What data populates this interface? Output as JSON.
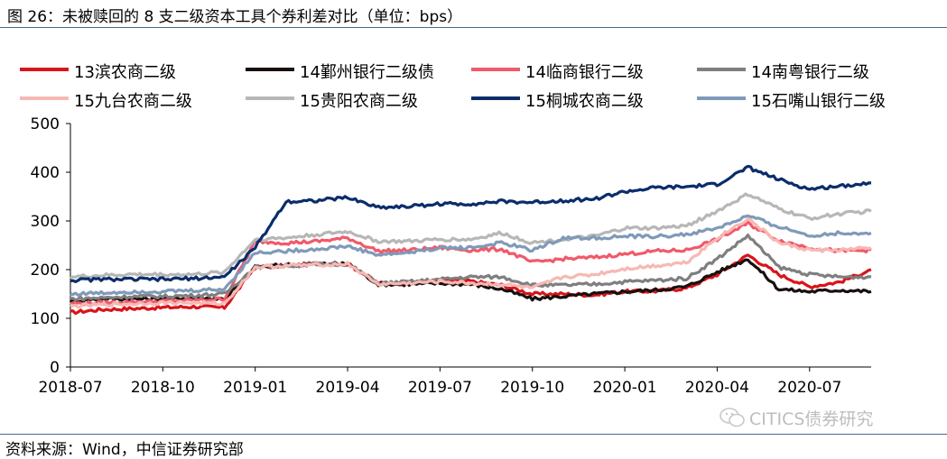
{
  "header": {
    "title": "图 26：未被赎回的 8 支二级资本工具个券利差对比（单位：bps）"
  },
  "footer": {
    "source": "资料来源：Wind，中信证券研究部",
    "watermark": "CITICS债券研究"
  },
  "chart_data": {
    "type": "line",
    "title": "图 26：未被赎回的 8 支二级资本工具个券利差对比（单位：bps）",
    "xlabel": "",
    "ylabel": "",
    "ylim": [
      0,
      500
    ],
    "yticks": [
      "0",
      "100",
      "200",
      "300",
      "400",
      "500"
    ],
    "xticks": [
      "2018-07",
      "2018-10",
      "2019-01",
      "2019-04",
      "2019-07",
      "2019-10",
      "2020-01",
      "2020-04",
      "2020-07"
    ],
    "grid": false,
    "legend_position": "top",
    "x": [
      "2018-07",
      "2018-08",
      "2018-09",
      "2018-10",
      "2018-11",
      "2018-12",
      "2019-01",
      "2019-02",
      "2019-03",
      "2019-04",
      "2019-05",
      "2019-06",
      "2019-07",
      "2019-08",
      "2019-09",
      "2019-10",
      "2019-11",
      "2019-12",
      "2020-01",
      "2020-02",
      "2020-03",
      "2020-04",
      "2020-05",
      "2020-06",
      "2020-07",
      "2020-08",
      "2020-09"
    ],
    "series": [
      {
        "name": "13滨农商二级",
        "color": "#d9141a",
        "values": [
          112,
          118,
          120,
          122,
          124,
          122,
          205,
          208,
          212,
          212,
          172,
          172,
          178,
          176,
          168,
          150,
          150,
          148,
          155,
          156,
          162,
          190,
          230,
          190,
          165,
          175,
          200
        ]
      },
      {
        "name": "14鄞州银行二级债",
        "color": "#1a0f0f",
        "values": [
          135,
          140,
          140,
          140,
          142,
          140,
          205,
          210,
          212,
          212,
          170,
          170,
          172,
          170,
          160,
          140,
          145,
          150,
          155,
          158,
          165,
          195,
          222,
          160,
          155,
          158,
          155
        ]
      },
      {
        "name": "14临商银行二级",
        "color": "#f05a6a",
        "values": [
          130,
          132,
          134,
          135,
          137,
          140,
          258,
          255,
          258,
          265,
          238,
          240,
          245,
          240,
          242,
          215,
          222,
          225,
          232,
          238,
          240,
          262,
          295,
          260,
          245,
          238,
          240
        ]
      },
      {
        "name": "14南粤银行二级",
        "color": "#7f7f7f",
        "values": [
          140,
          142,
          145,
          145,
          147,
          150,
          205,
          208,
          210,
          212,
          172,
          175,
          180,
          185,
          185,
          168,
          168,
          170,
          175,
          178,
          182,
          222,
          270,
          205,
          190,
          185,
          185
        ]
      },
      {
        "name": "15九台农商二级",
        "color": "#f7b8b4",
        "values": [
          125,
          128,
          130,
          132,
          132,
          130,
          205,
          208,
          210,
          212,
          170,
          172,
          176,
          172,
          170,
          162,
          185,
          190,
          202,
          208,
          215,
          265,
          305,
          255,
          240,
          240,
          245
        ]
      },
      {
        "name": "15贵阳农商二级",
        "color": "#b7b7b7",
        "values": [
          185,
          188,
          190,
          190,
          190,
          195,
          262,
          265,
          272,
          278,
          258,
          258,
          262,
          262,
          275,
          255,
          262,
          268,
          285,
          285,
          290,
          320,
          355,
          325,
          305,
          315,
          320
        ]
      },
      {
        "name": "15桐城农商二级",
        "color": "#0b2d6b",
        "values": [
          178,
          180,
          180,
          180,
          182,
          185,
          245,
          340,
          342,
          348,
          328,
          330,
          335,
          335,
          340,
          338,
          342,
          345,
          360,
          368,
          370,
          375,
          410,
          385,
          365,
          372,
          378
        ]
      },
      {
        "name": "15石嘴山银行二级",
        "color": "#7f9ab9",
        "values": [
          150,
          152,
          155,
          155,
          157,
          160,
          235,
          238,
          242,
          248,
          230,
          235,
          245,
          245,
          255,
          240,
          265,
          265,
          268,
          268,
          272,
          285,
          310,
          288,
          270,
          275,
          275
        ]
      }
    ]
  }
}
